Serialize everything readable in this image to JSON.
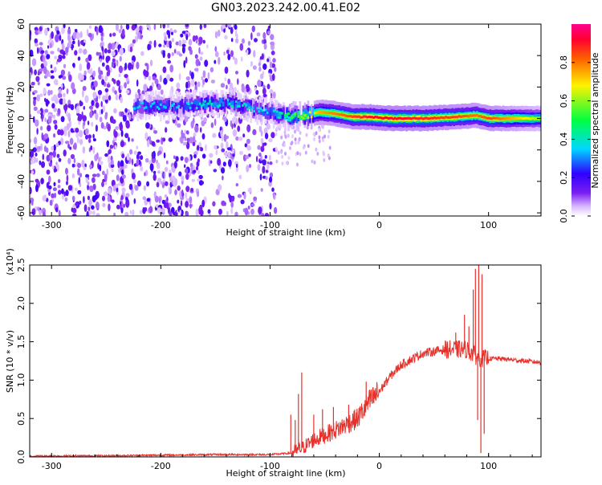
{
  "title": "GN03.2023.242.00.41.E02",
  "chart_data": [
    {
      "type": "heatmap",
      "xlabel": "Height of straight line (km)",
      "ylabel": "Frequency (Hz)",
      "xlim": [
        -320,
        148
      ],
      "ylim": [
        -62,
        60
      ],
      "x_ticks": [
        -300,
        -200,
        -100,
        0,
        100
      ],
      "y_ticks": [
        -60,
        -40,
        -20,
        0,
        20,
        40,
        60
      ],
      "colorbar": {
        "label": "Normalized spectral amplitude",
        "range": [
          0.0,
          1.0
        ],
        "ticks": [
          0.0,
          0.2,
          0.4,
          0.6,
          0.8
        ],
        "colormap": [
          "#ffffff",
          "#d9b8ff",
          "#7a1ff0",
          "#2f00ff",
          "#00d8ff",
          "#00ff40",
          "#fff200",
          "#ff6000",
          "#ff0030"
        ]
      },
      "ridge": {
        "description_free": true,
        "points": [
          {
            "x": -225,
            "y": 8,
            "a": 0.35
          },
          {
            "x": -180,
            "y": 8,
            "a": 0.35
          },
          {
            "x": -160,
            "y": 9,
            "a": 0.4
          },
          {
            "x": -140,
            "y": 10,
            "a": 0.4
          },
          {
            "x": -120,
            "y": 7,
            "a": 0.4
          },
          {
            "x": -100,
            "y": 4,
            "a": 0.35
          },
          {
            "x": -90,
            "y": 2,
            "a": 0.45
          },
          {
            "x": -80,
            "y": 1,
            "a": 0.55
          },
          {
            "x": -70,
            "y": 2,
            "a": 0.6
          },
          {
            "x": -55,
            "y": 4,
            "a": 0.75
          },
          {
            "x": -40,
            "y": 3,
            "a": 0.8
          },
          {
            "x": -25,
            "y": 1,
            "a": 0.85
          },
          {
            "x": -10,
            "y": 1,
            "a": 0.9
          },
          {
            "x": 10,
            "y": 0,
            "a": 0.92
          },
          {
            "x": 40,
            "y": 0,
            "a": 0.88
          },
          {
            "x": 70,
            "y": 1,
            "a": 0.85
          },
          {
            "x": 88,
            "y": 2,
            "a": 0.8
          },
          {
            "x": 100,
            "y": 0,
            "a": 0.85
          },
          {
            "x": 148,
            "y": 0,
            "a": 0.6
          }
        ]
      }
    },
    {
      "type": "line",
      "xlabel": "Height of straight line (km)",
      "ylabel": "SNR (10 * v/v)",
      "y_multiplier": "(x10⁴)",
      "xlim": [
        -320,
        148
      ],
      "ylim": [
        0.0,
        2.5
      ],
      "x_ticks": [
        -300,
        -200,
        -100,
        0,
        100
      ],
      "y_ticks": [
        0.0,
        0.5,
        1.0,
        1.5,
        2.0,
        2.5
      ],
      "color": "#e8302a",
      "envelope": {
        "x": [
          -320,
          -250,
          -150,
          -100,
          -80,
          -70,
          -60,
          -40,
          -20,
          -10,
          0,
          10,
          20,
          40,
          60,
          80,
          90,
          95,
          110,
          148
        ],
        "y": [
          0.01,
          0.015,
          0.03,
          0.03,
          0.05,
          0.12,
          0.22,
          0.35,
          0.5,
          0.7,
          0.85,
          1.05,
          1.2,
          1.35,
          1.4,
          1.4,
          1.3,
          1.28,
          1.28,
          1.23
        ]
      },
      "spikes": [
        {
          "x": -81,
          "y": 0.55
        },
        {
          "x": -77,
          "y": 0.48
        },
        {
          "x": -74,
          "y": 0.82
        },
        {
          "x": -71,
          "y": 1.1
        },
        {
          "x": -60,
          "y": 0.55
        },
        {
          "x": -52,
          "y": 0.62
        },
        {
          "x": -42,
          "y": 0.65
        },
        {
          "x": -28,
          "y": 0.68
        },
        {
          "x": -12,
          "y": 0.98
        },
        {
          "x": -2,
          "y": 0.95
        },
        {
          "x": 70,
          "y": 1.62
        },
        {
          "x": 78,
          "y": 1.85
        },
        {
          "x": 82,
          "y": 1.7
        },
        {
          "x": 86,
          "y": 2.18
        },
        {
          "x": 88,
          "y": 2.45
        },
        {
          "x": 90,
          "y": 0.48
        },
        {
          "x": 91,
          "y": 2.5
        },
        {
          "x": 93,
          "y": 0.05
        },
        {
          "x": 94,
          "y": 2.38
        },
        {
          "x": 96,
          "y": 0.3
        }
      ]
    }
  ]
}
